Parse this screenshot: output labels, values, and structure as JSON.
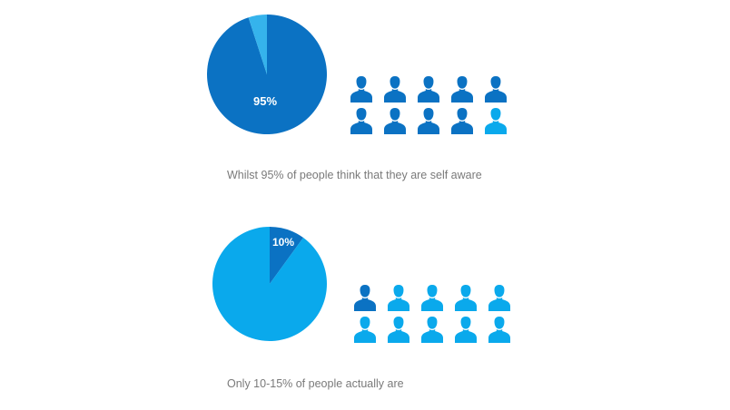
{
  "colors": {
    "dark_blue": "#0b72c3",
    "light_blue": "#0aa9ec",
    "mid_blue": "#35b3ec"
  },
  "icon": "person-icon",
  "chart_data": [
    {
      "type": "pie",
      "slices": [
        {
          "value": 95,
          "label": "95%",
          "color": "#0b72c3"
        },
        {
          "value": 5,
          "label": "",
          "color": "#35b3ec"
        }
      ],
      "pictogram": {
        "total": 10,
        "highlighted": 9,
        "highlight_color": "#0b72c3",
        "rest_color": "#0aa9ec"
      },
      "caption": "Whilst 95% of people think that they are self aware"
    },
    {
      "type": "pie",
      "slices": [
        {
          "value": 10,
          "label": "10%",
          "color": "#0b72c3"
        },
        {
          "value": 90,
          "label": "",
          "color": "#0aa9ec"
        }
      ],
      "pictogram": {
        "total": 10,
        "highlighted": 1,
        "highlight_color": "#0b72c3",
        "rest_color": "#0aa9ec"
      },
      "caption": "Only 10-15% of people actually are"
    }
  ]
}
